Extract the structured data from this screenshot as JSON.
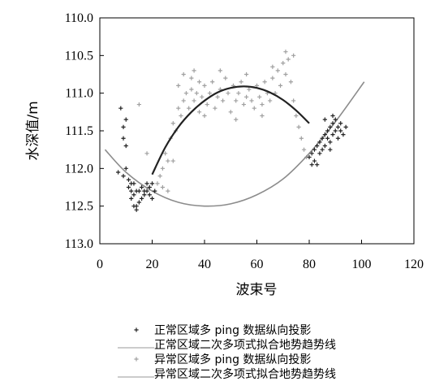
{
  "chart_data": {
    "type": "scatter",
    "xlabel": "波束号",
    "ylabel": "水深值/m",
    "xlim": [
      0,
      120
    ],
    "ylim": [
      110.0,
      113.0
    ],
    "y_inverted": true,
    "x_ticks": [
      "0",
      "20",
      "40",
      "60",
      "80",
      "100",
      "120"
    ],
    "y_ticks": [
      "110.0",
      "110.5",
      "111.0",
      "111.5",
      "112.0",
      "112.5",
      "113.0"
    ],
    "grid": false,
    "legend_position": "bottom",
    "series": [
      {
        "name": "正常区域多 ping 数据纵向投影",
        "kind": "points",
        "marker": "+",
        "color": "#222222",
        "points": [
          [
            7,
            112.05
          ],
          [
            8,
            111.2
          ],
          [
            9,
            111.6
          ],
          [
            9,
            111.45
          ],
          [
            10,
            111.35
          ],
          [
            9,
            112.1
          ],
          [
            10,
            112.0
          ],
          [
            11,
            112.15
          ],
          [
            11,
            112.25
          ],
          [
            12,
            112.3
          ],
          [
            12,
            112.4
          ],
          [
            13,
            112.2
          ],
          [
            13,
            112.35
          ],
          [
            14,
            112.3
          ],
          [
            14,
            112.5
          ],
          [
            15,
            112.45
          ],
          [
            15,
            112.3
          ],
          [
            16,
            112.4
          ],
          [
            16,
            112.25
          ],
          [
            17,
            112.3
          ],
          [
            17,
            112.35
          ],
          [
            18,
            112.2
          ],
          [
            18,
            112.3
          ],
          [
            19,
            112.25
          ],
          [
            19,
            112.35
          ],
          [
            20,
            112.2
          ],
          [
            21,
            112.3
          ],
          [
            20,
            112.4
          ],
          [
            13,
            112.5
          ],
          [
            14,
            112.55
          ],
          [
            12,
            112.2
          ],
          [
            10,
            111.7
          ],
          [
            80,
            111.85
          ],
          [
            81,
            111.8
          ],
          [
            82,
            111.75
          ],
          [
            82,
            111.9
          ],
          [
            83,
            111.7
          ],
          [
            84,
            111.65
          ],
          [
            84,
            111.8
          ],
          [
            85,
            111.6
          ],
          [
            85,
            111.75
          ],
          [
            86,
            111.55
          ],
          [
            86,
            111.7
          ],
          [
            87,
            111.5
          ],
          [
            87,
            111.6
          ],
          [
            88,
            111.45
          ],
          [
            88,
            111.65
          ],
          [
            89,
            111.4
          ],
          [
            89,
            111.55
          ],
          [
            90,
            111.35
          ],
          [
            90,
            111.5
          ],
          [
            91,
            111.45
          ],
          [
            91,
            111.6
          ],
          [
            92,
            111.5
          ],
          [
            92,
            111.4
          ],
          [
            93,
            111.55
          ],
          [
            94,
            111.45
          ],
          [
            89,
            111.3
          ],
          [
            86,
            111.35
          ],
          [
            83,
            111.95
          ],
          [
            81,
            111.95
          ],
          [
            88,
            111.75
          ]
        ]
      },
      {
        "name": "正常区域二次多项式拟合地势趋势线",
        "kind": "line",
        "color": "#222222",
        "x": [
          20,
          25,
          30,
          35,
          40,
          45,
          50,
          55,
          60,
          65,
          70,
          75,
          80
        ],
        "y": [
          112.08,
          111.72,
          111.45,
          111.25,
          111.1,
          110.99,
          110.93,
          110.91,
          110.93,
          110.99,
          111.09,
          111.23,
          111.4
        ]
      },
      {
        "name": "异常区域多 ping 数据纵向投影",
        "kind": "points",
        "marker": "+",
        "color": "#a0a0a0",
        "points": [
          [
            22,
            112.2
          ],
          [
            23,
            112.1
          ],
          [
            24,
            112.0
          ],
          [
            25,
            111.8
          ],
          [
            26,
            111.9
          ],
          [
            27,
            111.6
          ],
          [
            28,
            111.4
          ],
          [
            29,
            111.5
          ],
          [
            30,
            111.2
          ],
          [
            30,
            110.9
          ],
          [
            31,
            111.3
          ],
          [
            32,
            111.1
          ],
          [
            32,
            110.75
          ],
          [
            33,
            111.0
          ],
          [
            34,
            111.2
          ],
          [
            35,
            110.95
          ],
          [
            35,
            110.8
          ],
          [
            36,
            111.1
          ],
          [
            37,
            111.0
          ],
          [
            38,
            110.85
          ],
          [
            38,
            111.25
          ],
          [
            39,
            111.05
          ],
          [
            40,
            110.9
          ],
          [
            41,
            111.15
          ],
          [
            42,
            111.0
          ],
          [
            43,
            110.85
          ],
          [
            44,
            111.2
          ],
          [
            45,
            111.05
          ],
          [
            46,
            110.95
          ],
          [
            47,
            111.1
          ],
          [
            48,
            110.8
          ],
          [
            49,
            111.0
          ],
          [
            50,
            111.25
          ],
          [
            51,
            110.9
          ],
          [
            52,
            111.1
          ],
          [
            53,
            111.0
          ],
          [
            54,
            110.85
          ],
          [
            55,
            111.15
          ],
          [
            56,
            111.05
          ],
          [
            57,
            110.95
          ],
          [
            58,
            111.1
          ],
          [
            59,
            111.2
          ],
          [
            60,
            110.9
          ],
          [
            61,
            111.05
          ],
          [
            62,
            111.15
          ],
          [
            63,
            110.85
          ],
          [
            64,
            111.0
          ],
          [
            65,
            111.1
          ],
          [
            66,
            110.8
          ],
          [
            67,
            111.0
          ],
          [
            68,
            110.7
          ],
          [
            69,
            110.9
          ],
          [
            70,
            110.6
          ],
          [
            71,
            110.75
          ],
          [
            72,
            110.55
          ],
          [
            73,
            110.85
          ],
          [
            74,
            111.1
          ],
          [
            75,
            111.3
          ],
          [
            76,
            111.45
          ],
          [
            77,
            111.6
          ],
          [
            78,
            111.75
          ],
          [
            79,
            111.85
          ],
          [
            36,
            110.7
          ],
          [
            46,
            110.7
          ],
          [
            56,
            110.75
          ],
          [
            66,
            110.65
          ],
          [
            26,
            112.3
          ],
          [
            24,
            112.25
          ],
          [
            15,
            111.15
          ],
          [
            18,
            111.8
          ],
          [
            28,
            111.9
          ],
          [
            74,
            110.5
          ],
          [
            71,
            110.45
          ],
          [
            40,
            111.3
          ],
          [
            52,
            111.35
          ],
          [
            62,
            111.3
          ]
        ]
      },
      {
        "name": "异常区域二次多项式拟合地势趋势线",
        "kind": "line",
        "color": "#8c8c8c",
        "x": [
          2,
          10,
          20,
          30,
          40,
          50,
          60,
          70,
          80,
          90,
          101
        ],
        "y": [
          111.75,
          112.05,
          112.3,
          112.45,
          112.5,
          112.47,
          112.35,
          112.14,
          111.8,
          111.38,
          110.85
        ]
      }
    ]
  }
}
